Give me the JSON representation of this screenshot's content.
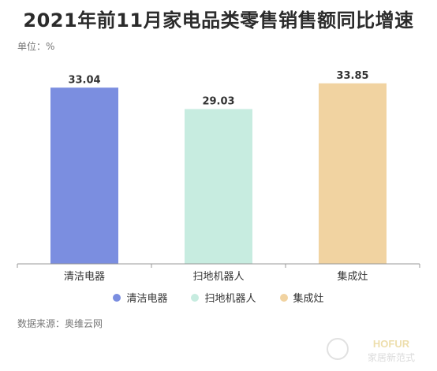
{
  "page": {
    "title": "2021年前11月家电品类零售销售额同比增速",
    "unit_label": "单位：%",
    "source": "数据来源：奥维云网",
    "watermark_brand": "HOFUR",
    "watermark_text": "家居新范式"
  },
  "chart_data": {
    "type": "bar",
    "title": "2021年前11月家电品类零售销售额同比增速",
    "xlabel": "",
    "ylabel": "",
    "categories": [
      "清洁电器",
      "扫地机器人",
      "集成灶"
    ],
    "values": [
      33.04,
      29.03,
      33.85
    ],
    "value_labels": [
      "33.04",
      "29.03",
      "33.85"
    ],
    "colors": [
      "#7b8ee0",
      "#c7ece0",
      "#f1d3a1"
    ],
    "ylim": [
      0,
      35
    ],
    "grid": false,
    "legend": {
      "position": "bottom",
      "entries": [
        {
          "label": "清洁电器",
          "color": "#7b8ee0"
        },
        {
          "label": "扫地机器人",
          "color": "#c7ece0"
        },
        {
          "label": "集成灶",
          "color": "#f1d3a1"
        }
      ]
    }
  }
}
